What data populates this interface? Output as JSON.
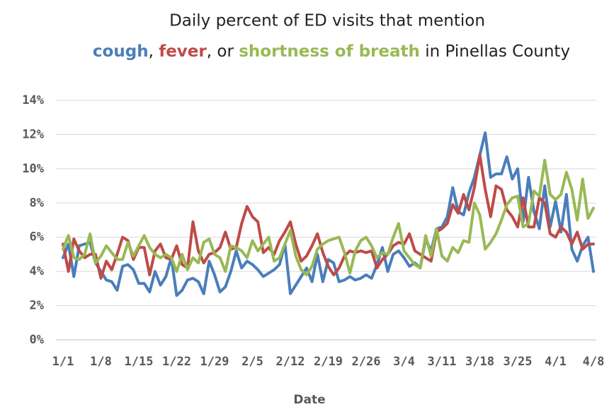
{
  "chart_data": {
    "type": "line",
    "title": "Daily percent of ED visits that mention",
    "subtitle_parts": [
      ", ",
      ", or ",
      " in Pinellas County"
    ],
    "x_label": "Date",
    "categories": [
      "1/1",
      null,
      null,
      null,
      null,
      null,
      null,
      "1/8",
      null,
      null,
      null,
      null,
      null,
      null,
      "1/15",
      null,
      null,
      null,
      null,
      null,
      null,
      "1/22",
      null,
      null,
      null,
      null,
      null,
      null,
      "1/29",
      null,
      null,
      null,
      null,
      null,
      null,
      "2/5",
      null,
      null,
      null,
      null,
      null,
      null,
      "2/12",
      null,
      null,
      null,
      null,
      null,
      null,
      "2/19",
      null,
      null,
      null,
      null,
      null,
      null,
      "2/26",
      null,
      null,
      null,
      null,
      null,
      null,
      "3/4",
      null,
      null,
      null,
      null,
      null,
      null,
      "3/11",
      null,
      null,
      null,
      null,
      null,
      null,
      "3/18",
      null,
      null,
      null,
      null,
      null,
      null,
      "3/25",
      null,
      null,
      null,
      null,
      null,
      null,
      "4/1",
      null,
      null,
      null,
      null,
      null,
      null,
      "4/8"
    ],
    "series": [
      {
        "name": "cough",
        "color": "#4a7ebb",
        "values": [
          4.8,
          5.6,
          3.7,
          5.5,
          5.6,
          5.7,
          4.5,
          4.0,
          3.5,
          3.4,
          2.9,
          4.3,
          4.4,
          4.1,
          3.3,
          3.3,
          2.8,
          4.0,
          3.2,
          3.7,
          4.8,
          2.6,
          2.9,
          3.5,
          3.6,
          3.4,
          2.7,
          4.6,
          3.8,
          2.8,
          3.1,
          4.0,
          5.2,
          4.2,
          4.6,
          4.4,
          4.1,
          3.7,
          3.9,
          4.1,
          4.4,
          5.6,
          2.7,
          3.2,
          3.7,
          4.2,
          3.4,
          5.0,
          3.4,
          4.7,
          4.5,
          3.4,
          3.5,
          3.7,
          3.5,
          3.6,
          3.8,
          3.6,
          4.4,
          5.4,
          4.0,
          5.0,
          5.2,
          4.8,
          4.3,
          4.5,
          4.2,
          5.9,
          5.2,
          6.5,
          6.6,
          7.2,
          8.9,
          7.5,
          7.3,
          8.6,
          9.5,
          10.8,
          12.1,
          9.5,
          9.7,
          9.7,
          10.7,
          9.4,
          10.0,
          6.9,
          9.5,
          7.5,
          6.5,
          9.0,
          6.6,
          8.1,
          6.3,
          8.5,
          5.3,
          4.6,
          5.5,
          6.0,
          4.0
        ]
      },
      {
        "name": "fever",
        "color": "#be4b48",
        "values": [
          5.6,
          4.0,
          5.9,
          5.2,
          4.8,
          5.0,
          5.0,
          3.6,
          4.6,
          4.1,
          5.0,
          6.0,
          5.8,
          4.7,
          5.4,
          5.4,
          3.8,
          5.2,
          5.6,
          4.8,
          4.7,
          5.5,
          4.4,
          4.2,
          6.9,
          5.2,
          4.5,
          5.0,
          5.1,
          5.4,
          6.3,
          5.3,
          5.4,
          6.8,
          7.8,
          7.2,
          6.9,
          5.1,
          5.4,
          5.0,
          5.8,
          6.3,
          6.9,
          5.6,
          4.6,
          4.9,
          5.5,
          6.2,
          5.1,
          4.3,
          3.8,
          4.2,
          4.9,
          5.2,
          5.1,
          5.2,
          5.1,
          5.2,
          4.2,
          4.7,
          5.0,
          5.5,
          5.7,
          5.6,
          6.2,
          5.2,
          5.0,
          4.8,
          4.6,
          6.3,
          6.5,
          6.8,
          7.9,
          7.4,
          8.5,
          7.6,
          8.9,
          10.8,
          8.8,
          7.2,
          9.0,
          8.8,
          7.6,
          7.2,
          6.6,
          8.3,
          6.6,
          6.6,
          8.3,
          8.0,
          6.2,
          6.0,
          6.6,
          6.3,
          5.6,
          6.3,
          5.3,
          5.6,
          5.6
        ]
      },
      {
        "name": "shortness of breath",
        "color": "#98b954",
        "values": [
          5.3,
          6.1,
          4.8,
          4.7,
          5.0,
          6.2,
          4.5,
          4.9,
          5.5,
          5.1,
          4.7,
          4.7,
          5.7,
          4.9,
          5.5,
          6.1,
          5.4,
          5.0,
          4.8,
          5.0,
          4.8,
          4.0,
          5.0,
          4.1,
          4.8,
          4.5,
          5.7,
          5.9,
          5.0,
          4.8,
          4.0,
          5.5,
          5.4,
          5.2,
          4.8,
          5.8,
          5.2,
          5.6,
          6.0,
          4.6,
          4.8,
          5.6,
          6.4,
          4.9,
          4.1,
          3.8,
          4.3,
          5.3,
          5.6,
          5.8,
          5.9,
          6.0,
          5.1,
          3.9,
          5.2,
          5.8,
          6.0,
          5.5,
          4.8,
          5.1,
          5.0,
          6.0,
          6.8,
          5.2,
          4.8,
          4.4,
          4.2,
          6.1,
          4.9,
          6.5,
          4.9,
          4.6,
          5.4,
          5.1,
          5.8,
          5.7,
          8.0,
          7.3,
          5.3,
          5.7,
          6.2,
          7.0,
          7.9,
          8.3,
          8.4,
          6.6,
          6.8,
          8.7,
          8.4,
          10.5,
          8.5,
          8.2,
          8.5,
          9.8,
          8.8,
          7.0,
          9.4,
          7.1,
          7.7
        ]
      }
    ],
    "ylim": [
      0,
      14
    ],
    "yticks": [
      {
        "value": 0,
        "label": "0%"
      },
      {
        "value": 2,
        "label": "2%"
      },
      {
        "value": 4,
        "label": "4%"
      },
      {
        "value": 6,
        "label": "6%"
      },
      {
        "value": 8,
        "label": "8%"
      },
      {
        "value": 10,
        "label": "10%"
      },
      {
        "value": 12,
        "label": "12%"
      },
      {
        "value": 14,
        "label": "14%"
      }
    ],
    "grid": true
  }
}
